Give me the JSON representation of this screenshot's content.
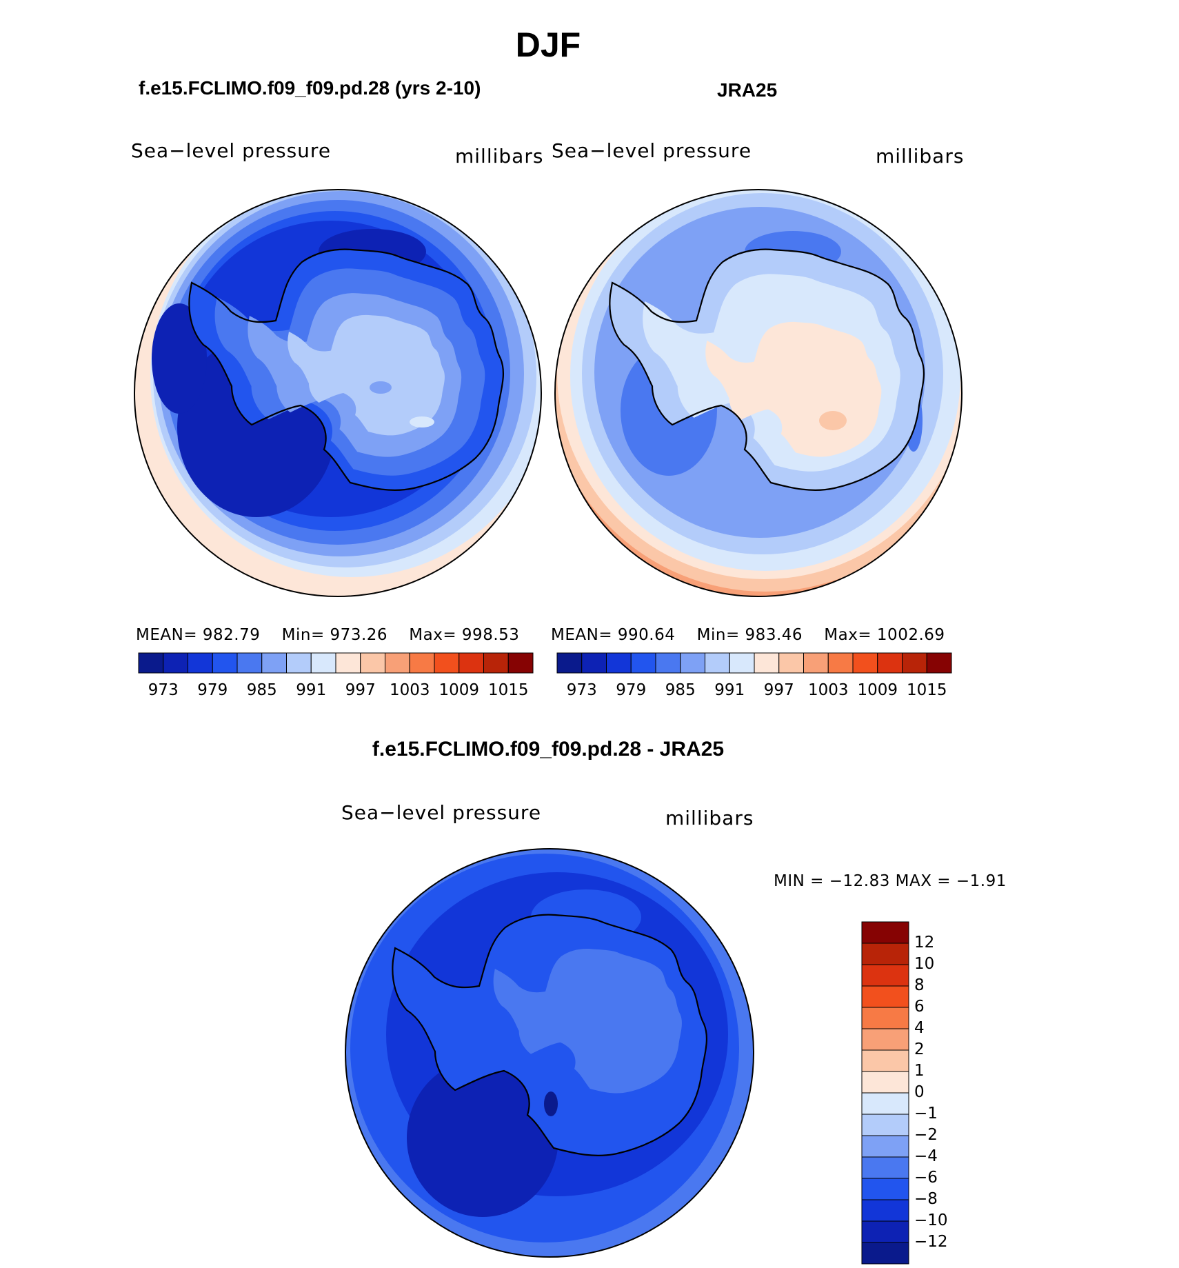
{
  "title": "DJF",
  "panels": [
    {
      "id": "model",
      "case_title": "f.e15.FCLIMO.f09_f09.pd.28 (yrs 2-10)",
      "variable": "Sea−level  pressure",
      "units": "millibars",
      "stats": {
        "mean_label": "MEAN=",
        "mean": "982.79",
        "min_label": "Min=",
        "min": "973.26",
        "max_label": "Max=",
        "max": "998.53"
      }
    },
    {
      "id": "obs",
      "case_title": "JRA25",
      "variable": "Sea−level  pressure",
      "units": "millibars",
      "stats": {
        "mean_label": "MEAN=",
        "mean": "990.64",
        "min_label": "Min=",
        "min": "983.46",
        "max_label": "Max=",
        "max": "1002.69"
      }
    },
    {
      "id": "diff",
      "case_title": "f.e15.FCLIMO.f09_f09.pd.28 - JRA25",
      "variable": "Sea−level  pressure",
      "units": "millibars",
      "minmax": "MIN  =  −12.83  MAX  =    −1.91"
    }
  ],
  "colorbar_main": {
    "colors": [
      "#0a1a8c",
      "#0d22b4",
      "#1236d8",
      "#2255ee",
      "#4a78f0",
      "#7ea1f5",
      "#b3ccfa",
      "#d8e8fc",
      "#fde6d8",
      "#fbc7a8",
      "#f8a077",
      "#f77a45",
      "#f2501d",
      "#dc3310",
      "#b82408",
      "#860303"
    ],
    "labels": [
      "973",
      "979",
      "985",
      "991",
      "997",
      "1003",
      "1009",
      "1015"
    ]
  },
  "colorbar_diff": {
    "colors": [
      "#0a1a8c",
      "#0d22b4",
      "#1236d8",
      "#2255ee",
      "#4a78f0",
      "#7ea1f5",
      "#b3ccfa",
      "#d8e8fc",
      "#fde6d8",
      "#fbc7a8",
      "#f8a077",
      "#f77a45",
      "#f2501d",
      "#dc3310",
      "#b82408",
      "#860303"
    ],
    "labels": [
      "−12",
      "−10",
      "−8",
      "−6",
      "−4",
      "−2",
      "−1",
      "0",
      "1",
      "2",
      "4",
      "6",
      "8",
      "10",
      "12"
    ]
  }
}
